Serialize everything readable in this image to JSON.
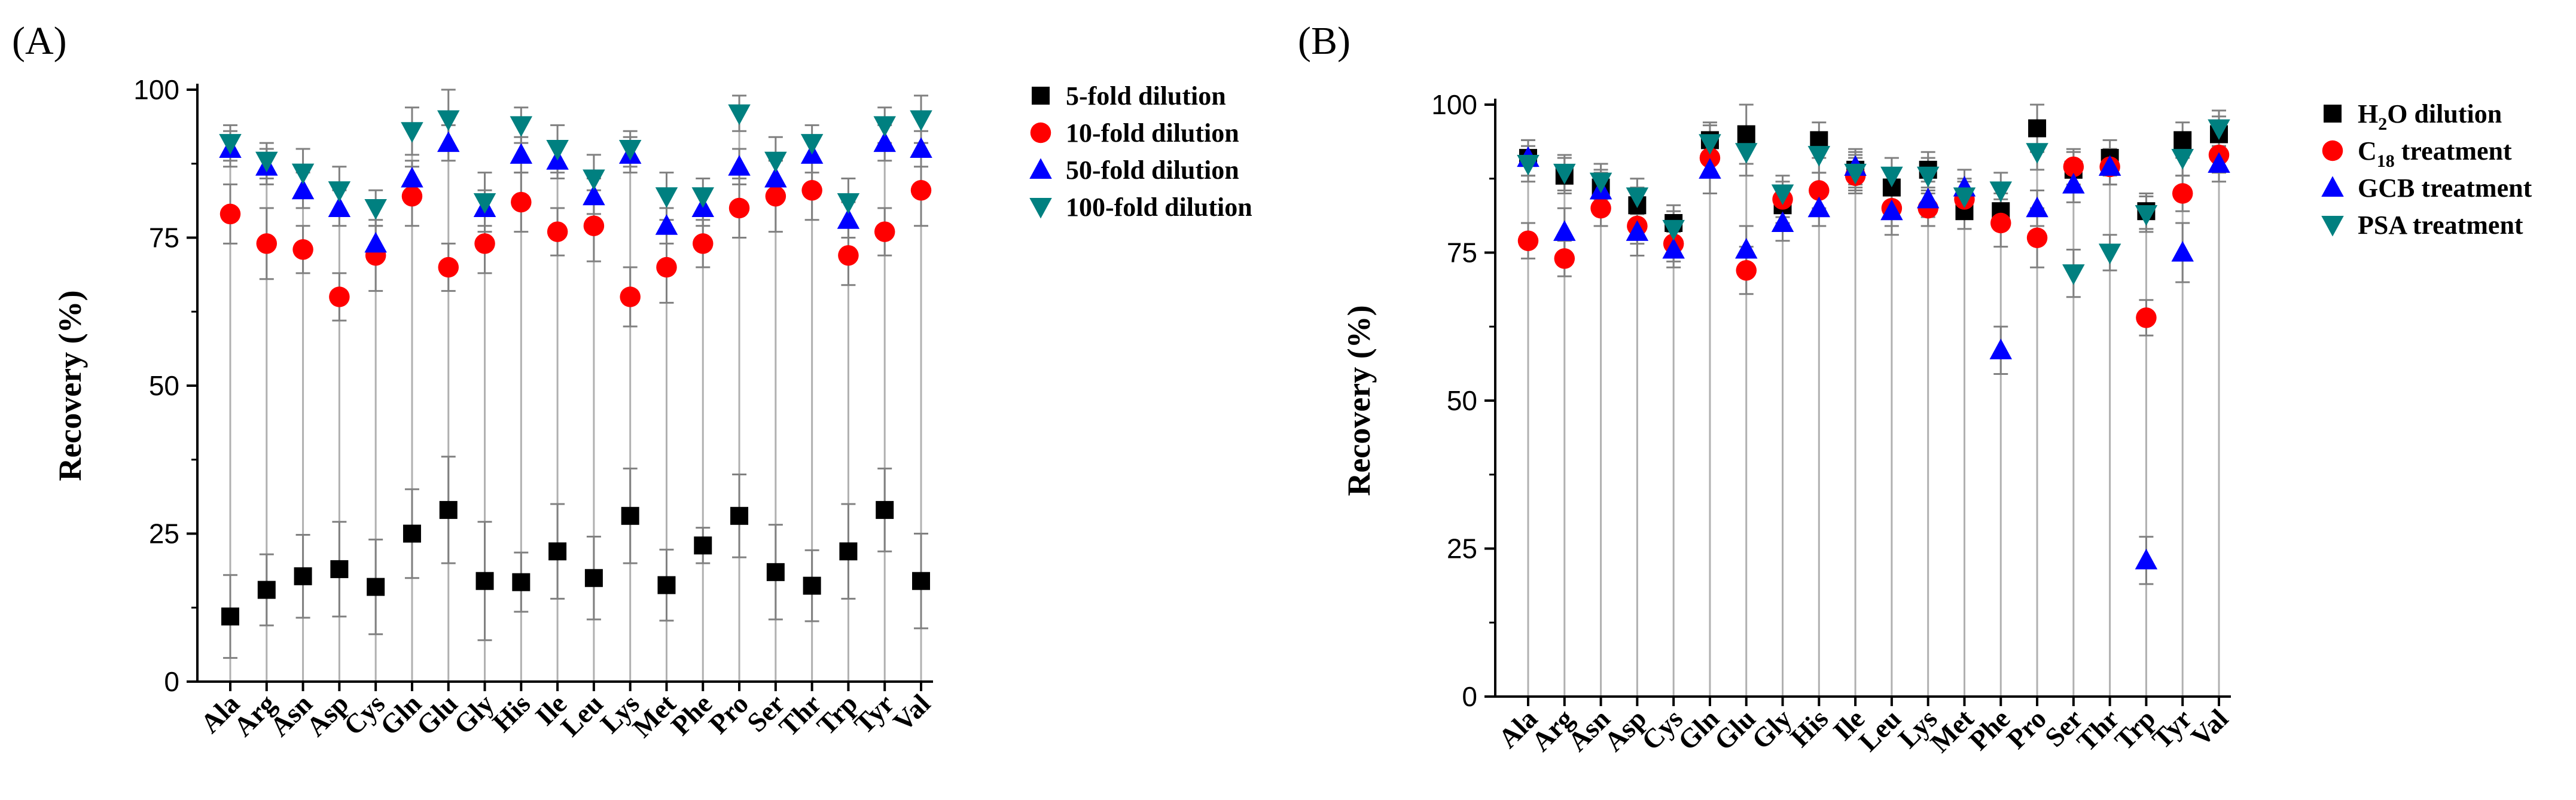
{
  "colors": {
    "black": "#000000",
    "red": "#ff0000",
    "blue": "#0000ff",
    "teal": "#008080",
    "grey_stem": "#b0b0b0",
    "errorbar": "#808080"
  },
  "chart_data": [
    {
      "type": "scatter",
      "panel_label": "(A)",
      "ylabel": "Recovery (%)",
      "ylim": [
        0,
        100
      ],
      "yticks": [
        0,
        25,
        50,
        75,
        100
      ],
      "categories": [
        "Ala",
        "Arg",
        "Asn",
        "Asp",
        "Cys",
        "Gln",
        "Glu",
        "Gly",
        "His",
        "Ile",
        "Leu",
        "Lys",
        "Met",
        "Phe",
        "Pro",
        "Ser",
        "Thr",
        "Trp",
        "Tyr",
        "Val"
      ],
      "legend_position": "top-right",
      "series": [
        {
          "name": "5-fold dilution",
          "marker": "square",
          "color": "#000000",
          "values": [
            11,
            15.5,
            17.8,
            19,
            16,
            25,
            29,
            17,
            16.8,
            22,
            17.5,
            28,
            16.3,
            23,
            28,
            18.5,
            16.2,
            22,
            29,
            17
          ],
          "errors": [
            7,
            6,
            7,
            8,
            8,
            7.5,
            9,
            10,
            5,
            8,
            7,
            8,
            6,
            3,
            7,
            8,
            6,
            8,
            7,
            8
          ]
        },
        {
          "name": "10-fold dilution",
          "marker": "circle",
          "color": "#ff0000",
          "values": [
            79,
            74,
            73,
            65,
            72,
            82,
            70,
            74,
            81,
            76,
            77,
            65,
            70,
            74,
            80,
            82,
            83,
            72,
            76,
            83
          ],
          "errors": [
            5,
            6,
            4,
            4,
            6,
            5,
            4,
            5,
            5,
            4,
            6,
            5,
            6,
            4,
            5,
            6,
            5,
            5,
            4,
            6
          ]
        },
        {
          "name": "50-fold dilution",
          "marker": "triangle-up",
          "color": "#0000ff",
          "values": [
            90,
            87,
            83,
            80,
            74,
            85,
            91,
            80,
            89,
            88,
            82,
            89,
            77,
            80,
            87,
            85,
            89,
            78,
            91,
            90
          ],
          "errors": [
            3,
            3,
            3,
            3,
            3,
            3,
            3,
            3,
            3,
            3,
            3,
            3,
            3,
            3,
            3,
            3,
            3,
            3,
            3,
            3
          ]
        },
        {
          "name": "100-fold dilution",
          "marker": "triangle-down",
          "color": "#008080",
          "values": [
            91,
            88,
            86,
            83,
            80,
            93,
            95,
            81,
            94,
            90,
            85,
            90,
            82,
            82,
            96,
            88,
            91,
            81,
            94,
            95
          ],
          "errors": [
            3,
            3,
            4,
            4,
            3,
            4,
            5,
            5,
            3,
            4,
            4,
            3,
            4,
            3,
            3,
            4,
            3,
            4,
            3,
            4
          ]
        }
      ]
    },
    {
      "type": "scatter",
      "panel_label": "(B)",
      "ylabel": "Recovery (%)",
      "ylim": [
        0,
        100
      ],
      "yticks": [
        0,
        25,
        50,
        75,
        100
      ],
      "categories": [
        "Ala",
        "Arg",
        "Asn",
        "Asp",
        "Cys",
        "Gln",
        "Glu",
        "Gly",
        "His",
        "Ile",
        "Leu",
        "Lys",
        "Met",
        "Phe",
        "Pro",
        "Ser",
        "Thr",
        "Trp",
        "Tyr",
        "Val"
      ],
      "legend_position": "top-right",
      "series": [
        {
          "name": "H2O dilution",
          "label_main": "H",
          "label_sub": "2",
          "label_tail": "O dilution",
          "marker": "square",
          "color": "#000000",
          "values": [
            91,
            88,
            86,
            83,
            80,
            94,
            95,
            83,
            94,
            89,
            86,
            89,
            82,
            82,
            96,
            89,
            91,
            82,
            94,
            95
          ],
          "errors": [
            3,
            3,
            3,
            3,
            3,
            3,
            5,
            3,
            3,
            3,
            3,
            3,
            3,
            3,
            4,
            3,
            3,
            3,
            3,
            3
          ]
        },
        {
          "name": "C18 treatment",
          "label_main": "C",
          "label_sub": "18",
          "label_tail": " treatment",
          "marker": "circle",
          "color": "#ff0000",
          "values": [
            77,
            74,
            82.5,
            79.5,
            76.5,
            91,
            72,
            84,
            85.5,
            88,
            82.5,
            82.5,
            84,
            80,
            77.5,
            89.5,
            89.5,
            64,
            85,
            91.5
          ],
          "errors": [
            3,
            3,
            3,
            3,
            3,
            3,
            4,
            3,
            3,
            3,
            3,
            3,
            3,
            4,
            5,
            3,
            3,
            3,
            3,
            3
          ]
        },
        {
          "name": "GCB treatment",
          "label_main": "GCB treatment",
          "label_sub": "",
          "label_tail": "",
          "marker": "triangle-up",
          "color": "#0000ff",
          "values": [
            91,
            78.5,
            85.5,
            78.5,
            75.5,
            89,
            75.5,
            80,
            82.5,
            89.5,
            82,
            84,
            86,
            58.5,
            82.5,
            86.5,
            89.5,
            23,
            75,
            90
          ],
          "errors": [
            3,
            4,
            3,
            4,
            3,
            4,
            4,
            3,
            3,
            3,
            4,
            3,
            3,
            4,
            3,
            3,
            3,
            4,
            5,
            3
          ]
        },
        {
          "name": "PSA treatment",
          "label_main": "PSA treatment",
          "label_sub": "",
          "label_tail": "",
          "marker": "triangle-down",
          "color": "#008080",
          "values": [
            90,
            88.5,
            87,
            84.5,
            79,
            93.5,
            92,
            85,
            91.5,
            88.5,
            88,
            88,
            84.5,
            85.5,
            92,
            71.5,
            75,
            81.5,
            91,
            96
          ],
          "errors": [
            3,
            3,
            3,
            3,
            3,
            3,
            4,
            3,
            3,
            3,
            3,
            3,
            3,
            3,
            3,
            4,
            3,
            3,
            3,
            3
          ]
        }
      ]
    }
  ]
}
